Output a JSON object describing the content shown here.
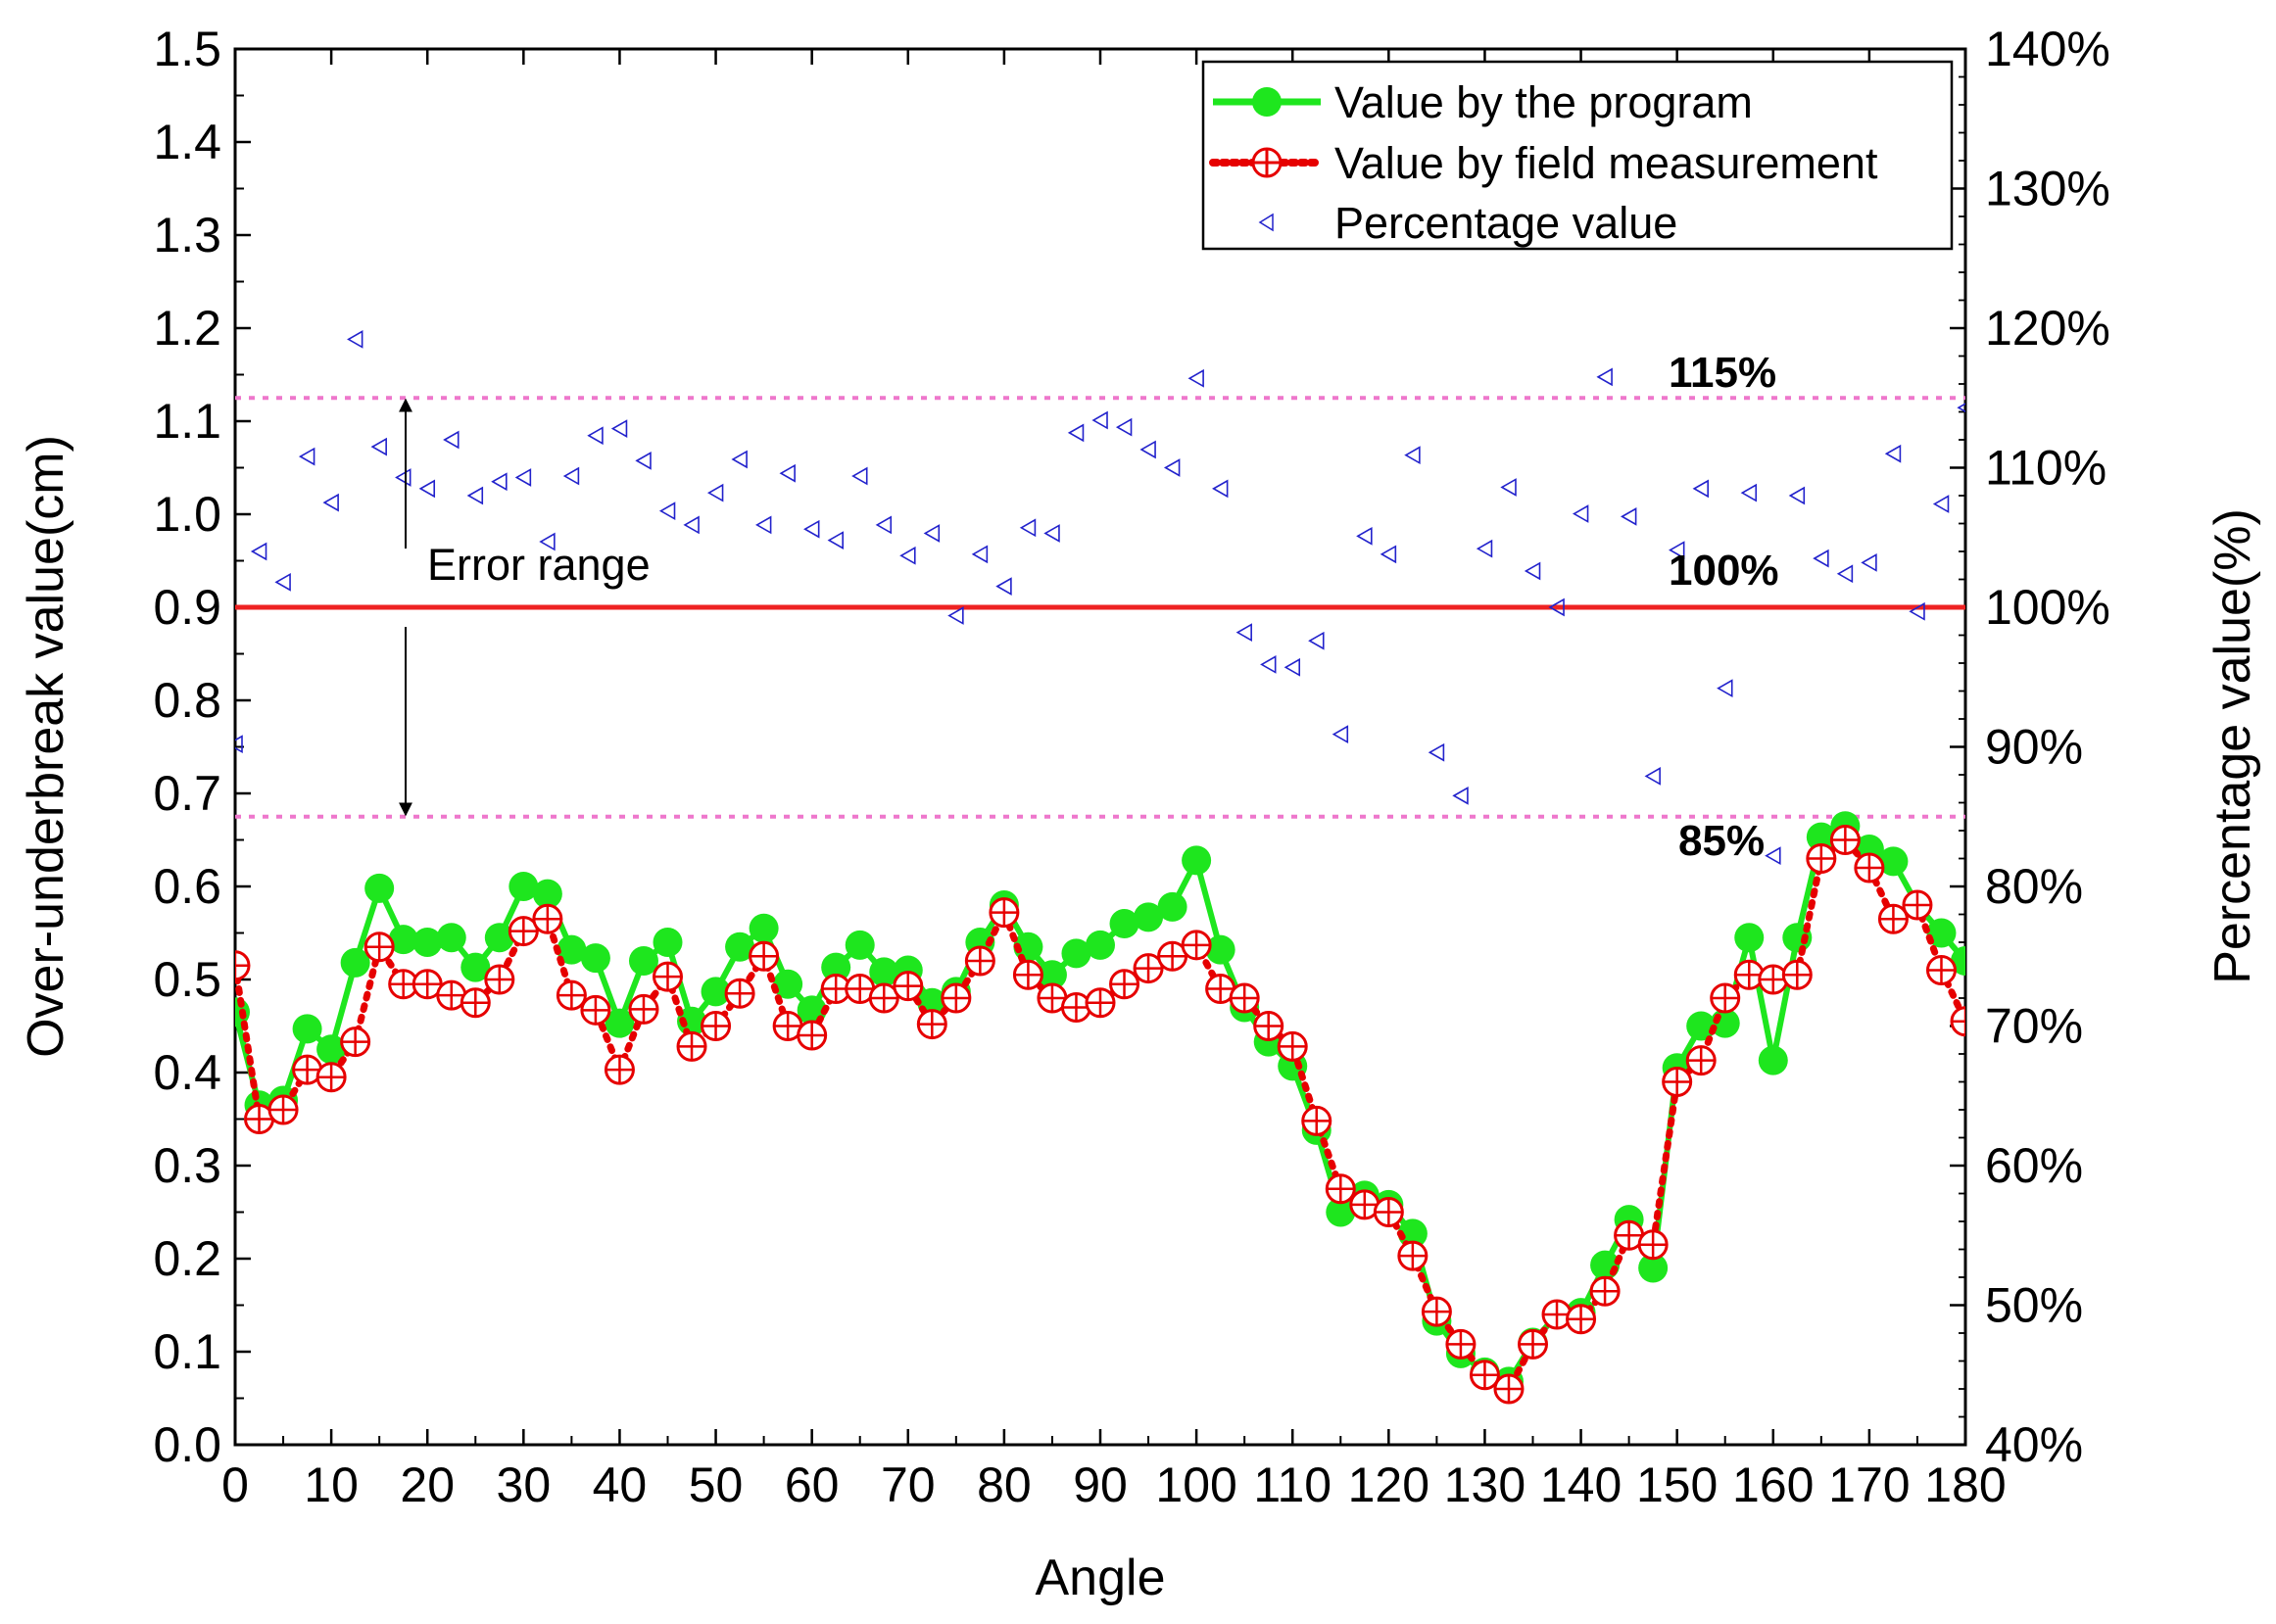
{
  "chart_data": {
    "type": "line",
    "title": "",
    "xlabel": "Angle",
    "ylabel": "Over-underbreak value(cm)",
    "y2label": "Percentage value(%)",
    "xlim": [
      0,
      180
    ],
    "ylim": [
      0,
      1.5
    ],
    "y2lim": [
      40,
      140
    ],
    "x_ticks": [
      "0",
      "10",
      "20",
      "30",
      "40",
      "50",
      "60",
      "70",
      "80",
      "90",
      "100",
      "110",
      "120",
      "130",
      "140",
      "150",
      "160",
      "170",
      "180"
    ],
    "y_ticks": [
      "0.0",
      "0.1",
      "0.2",
      "0.3",
      "0.4",
      "0.5",
      "0.6",
      "0.7",
      "0.8",
      "0.9",
      "1.0",
      "1.1",
      "1.2",
      "1.3",
      "1.4",
      "1.5"
    ],
    "y2_ticks": [
      "40%",
      "50%",
      "60%",
      "70%",
      "80%",
      "90%",
      "100%",
      "110%",
      "120%",
      "130%",
      "140%"
    ],
    "colors": {
      "program": "#1ee61e",
      "field": "#e60000",
      "percentage": "#2222cc",
      "reference_line": "#ee2222",
      "band_line": "#ee77cc"
    },
    "series": [
      {
        "name": "Value by the program",
        "axis": "left",
        "style": "solid-line-filled-circle",
        "x": [
          0,
          2.5,
          5,
          7.5,
          10,
          12.5,
          15,
          17.5,
          20,
          22.5,
          25,
          27.5,
          30,
          32.5,
          35,
          37.5,
          40,
          42.5,
          45,
          47.5,
          50,
          52.5,
          55,
          57.5,
          60,
          62.5,
          65,
          67.5,
          70,
          72.5,
          75,
          77.5,
          80,
          82.5,
          85,
          87.5,
          90,
          92.5,
          95,
          97.5,
          100,
          102.5,
          105,
          107.5,
          110,
          112.5,
          115,
          117.5,
          120,
          122.5,
          125,
          127.5,
          130,
          132.5,
          135,
          137.5,
          140,
          142.5,
          145,
          147.5,
          150,
          152.5,
          155,
          157.5,
          160,
          162.5,
          165,
          167.5,
          170,
          172.5,
          175,
          177.5,
          180
        ],
        "values": [
          0.465,
          0.365,
          0.37,
          0.447,
          0.425,
          0.518,
          0.598,
          0.543,
          0.54,
          0.545,
          0.513,
          0.545,
          0.6,
          0.592,
          0.532,
          0.523,
          0.453,
          0.52,
          0.54,
          0.455,
          0.487,
          0.535,
          0.555,
          0.495,
          0.467,
          0.513,
          0.537,
          0.508,
          0.51,
          0.475,
          0.487,
          0.54,
          0.58,
          0.535,
          0.505,
          0.528,
          0.537,
          0.56,
          0.567,
          0.578,
          0.628,
          0.532,
          0.47,
          0.433,
          0.407,
          0.338,
          0.25,
          0.268,
          0.258,
          0.227,
          0.133,
          0.098,
          0.078,
          0.068,
          0.11,
          0.14,
          0.142,
          0.193,
          0.242,
          0.19,
          0.405,
          0.45,
          0.453,
          0.545,
          0.413,
          0.545,
          0.653,
          0.665,
          0.64,
          0.627,
          0.58,
          0.55,
          0.52
        ]
      },
      {
        "name": "Value by field measurement",
        "axis": "left",
        "style": "dotted-line-crossed-circle",
        "x": [
          0,
          2.5,
          5,
          7.5,
          10,
          12.5,
          15,
          17.5,
          20,
          22.5,
          25,
          27.5,
          30,
          32.5,
          35,
          37.5,
          40,
          42.5,
          45,
          47.5,
          50,
          52.5,
          55,
          57.5,
          60,
          62.5,
          65,
          67.5,
          70,
          72.5,
          75,
          77.5,
          80,
          82.5,
          85,
          87.5,
          90,
          92.5,
          95,
          97.5,
          100,
          102.5,
          105,
          107.5,
          110,
          112.5,
          115,
          117.5,
          120,
          122.5,
          125,
          127.5,
          130,
          132.5,
          135,
          137.5,
          140,
          142.5,
          145,
          147.5,
          150,
          152.5,
          155,
          157.5,
          160,
          162.5,
          165,
          167.5,
          170,
          172.5,
          175,
          177.5,
          180
        ],
        "values": [
          0.515,
          0.35,
          0.36,
          0.403,
          0.395,
          0.433,
          0.535,
          0.495,
          0.495,
          0.483,
          0.475,
          0.5,
          0.552,
          0.565,
          0.483,
          0.467,
          0.403,
          0.468,
          0.503,
          0.428,
          0.45,
          0.485,
          0.525,
          0.45,
          0.44,
          0.49,
          0.49,
          0.48,
          0.493,
          0.452,
          0.48,
          0.52,
          0.572,
          0.505,
          0.48,
          0.47,
          0.475,
          0.495,
          0.512,
          0.525,
          0.537,
          0.49,
          0.48,
          0.45,
          0.428,
          0.348,
          0.275,
          0.258,
          0.25,
          0.203,
          0.143,
          0.108,
          0.075,
          0.06,
          0.108,
          0.14,
          0.135,
          0.165,
          0.225,
          0.215,
          0.39,
          0.413,
          0.48,
          0.505,
          0.5,
          0.505,
          0.63,
          0.65,
          0.62,
          0.565,
          0.58,
          0.51,
          0.455
        ]
      },
      {
        "name": "Percentage value",
        "axis": "right",
        "style": "open-left-triangle-marker",
        "x": [
          0,
          2.5,
          5,
          7.5,
          10,
          12.5,
          15,
          17.5,
          20,
          22.5,
          25,
          27.5,
          30,
          32.5,
          35,
          37.5,
          40,
          42.5,
          45,
          47.5,
          50,
          52.5,
          55,
          57.5,
          60,
          62.5,
          65,
          67.5,
          70,
          72.5,
          75,
          77.5,
          80,
          82.5,
          85,
          87.5,
          90,
          92.5,
          95,
          97.5,
          100,
          102.5,
          105,
          107.5,
          110,
          112.5,
          115,
          117.5,
          120,
          122.5,
          125,
          127.5,
          130,
          132.5,
          135,
          137.5,
          140,
          142.5,
          145,
          147.5,
          150,
          152.5,
          155,
          157.5,
          160,
          162.5,
          165,
          167.5,
          170,
          172.5,
          175,
          177.5,
          180
        ],
        "values": [
          90.2,
          104,
          101.8,
          110.8,
          107.5,
          119.2,
          111.5,
          109.3,
          108.5,
          112,
          108,
          109,
          109.3,
          104.7,
          109.4,
          112.3,
          112.8,
          110.5,
          106.9,
          105.9,
          108.2,
          110.6,
          105.9,
          109.6,
          105.6,
          104.8,
          109.4,
          105.9,
          103.7,
          105.3,
          99.4,
          103.8,
          101.5,
          105.7,
          105.3,
          112.5,
          113.4,
          112.9,
          111.3,
          110,
          116.4,
          108.5,
          98.2,
          95.9,
          95.7,
          97.6,
          90.9,
          105.1,
          103.8,
          110.9,
          89.6,
          86.5,
          104.2,
          108.6,
          102.6,
          100,
          106.7,
          116.5,
          106.5,
          87.9,
          104.1,
          108.5,
          94.2,
          108.2,
          82.2,
          108.0,
          103.5,
          102.4,
          103.2,
          111.0,
          99.7,
          107.4,
          114.3
        ]
      }
    ],
    "reference_lines": [
      {
        "label": "115%",
        "value": 1.125,
        "style": "dotted-pink"
      },
      {
        "label": "100%",
        "value": 0.9,
        "style": "solid-red"
      },
      {
        "label": "85%",
        "value": 0.675,
        "style": "dotted-pink"
      }
    ],
    "annotations": [
      {
        "text": "Error range",
        "type": "double-arrow"
      }
    ],
    "legend_position": "top-right",
    "grid": false
  }
}
